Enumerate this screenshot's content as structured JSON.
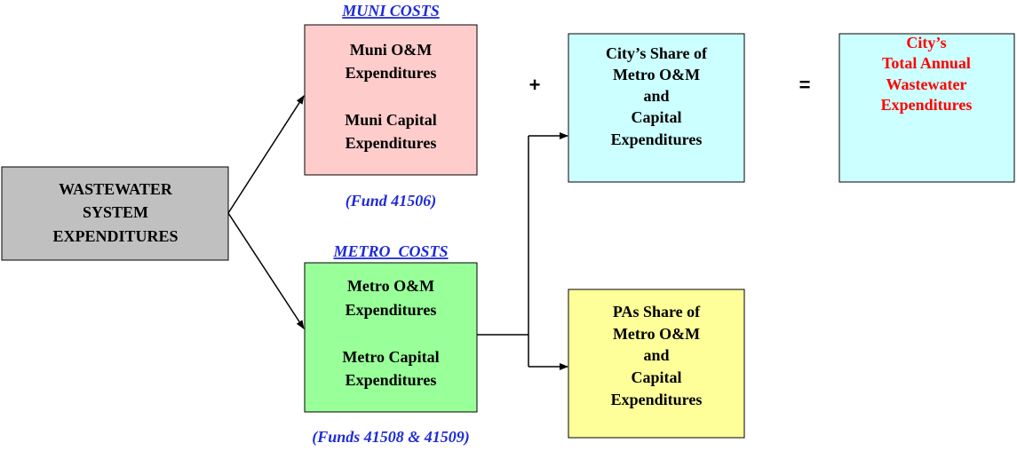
{
  "nodes": [
    {
      "lines": [
        "WASTEWATER",
        "SYSTEM",
        "EXPENDITURES"
      ]
    },
    {
      "lines": [
        "Muni O&M",
        "Expenditures",
        "Muni Capital",
        "Expenditures"
      ]
    },
    {
      "lines": [
        "Metro O&M",
        "Expenditures",
        "Metro Capital",
        "Expenditures"
      ]
    },
    {
      "lines": [
        "City’s Share of",
        "Metro O&M",
        "and",
        "Capital",
        "Expenditures"
      ]
    },
    {
      "lines": [
        "City’s",
        "Total Annual",
        "Wastewater",
        "Expenditures"
      ]
    },
    {
      "lines": [
        "PAs Share of",
        "Metro O&M",
        "and",
        "Capital",
        "Expenditures"
      ]
    }
  ],
  "labels": [
    "MUNI COSTS",
    "(Fund 41506)",
    "METRO  COSTS",
    "(Funds 41508 & 41509)"
  ],
  "operators": [
    "+",
    "="
  ]
}
